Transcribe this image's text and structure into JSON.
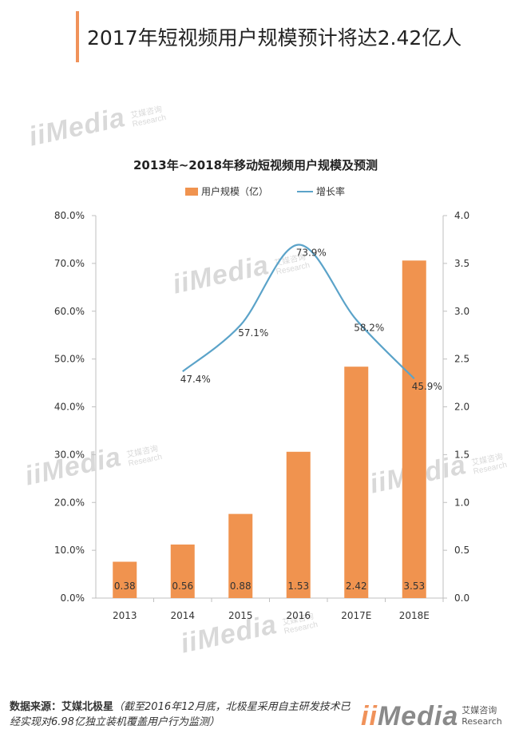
{
  "headline": "2017年短视频用户规模预计将达2.42亿人",
  "watermark": {
    "brand": "iiMedia",
    "sub_cn": "艾媒咨询",
    "sub_en": "Research"
  },
  "chart_data": {
    "type": "bar",
    "title": "2013年~2018年移动短视频用户规模及预测",
    "categories": [
      "2013",
      "2014",
      "2015",
      "2016",
      "2017E",
      "2018E"
    ],
    "series": [
      {
        "name": "用户规模（亿）",
        "type": "bar",
        "axis": "right",
        "color": "#f0934f",
        "values": [
          0.38,
          0.56,
          0.88,
          1.53,
          2.42,
          3.53
        ],
        "labels": [
          "0.38",
          "0.56",
          "0.88",
          "1.53",
          "2.42",
          "3.53"
        ]
      },
      {
        "name": "增长率",
        "type": "line",
        "axis": "left",
        "color": "#5ba3c9",
        "values": [
          null,
          47.4,
          57.1,
          73.9,
          58.2,
          45.9
        ],
        "labels": [
          null,
          "47.4%",
          "57.1%",
          "73.9%",
          "58.2%",
          "45.9%"
        ]
      }
    ],
    "y_left": {
      "ylim": [
        0,
        80
      ],
      "ticks": [
        "0.0%",
        "10.0%",
        "20.0%",
        "30.0%",
        "40.0%",
        "50.0%",
        "60.0%",
        "70.0%",
        "80.0%"
      ]
    },
    "y_right": {
      "ylim": [
        0,
        4
      ],
      "ticks": [
        "0.0",
        "0.5",
        "1.0",
        "1.5",
        "2.0",
        "2.5",
        "3.0",
        "3.5",
        "4.0"
      ]
    },
    "legend": "top",
    "grid": false
  },
  "footer": {
    "source_label": "数据来源：",
    "source_name": "艾媒北极星",
    "note": "（截至2016年12月底，北极星采用自主研发技术已经实现对6.98亿独立装机覆盖用户行为监测）"
  },
  "brand": {
    "mark": "iiMedia",
    "cn": "艾媒咨询",
    "en": "Research"
  }
}
